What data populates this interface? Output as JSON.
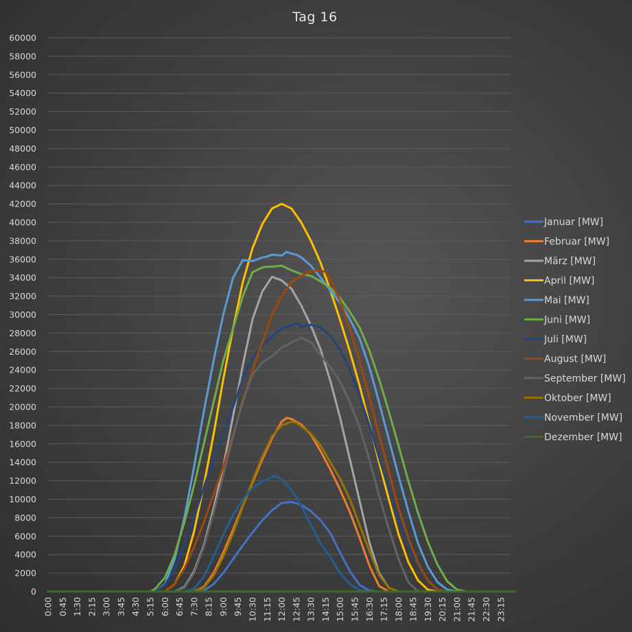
{
  "chart_data": {
    "type": "line",
    "title": "Tag 16",
    "xlabel": "",
    "ylabel": "",
    "ylim": [
      0,
      60000
    ],
    "y_ticks": [
      0,
      2000,
      4000,
      6000,
      8000,
      10000,
      12000,
      14000,
      16000,
      18000,
      20000,
      22000,
      24000,
      26000,
      28000,
      30000,
      32000,
      34000,
      36000,
      38000,
      40000,
      42000,
      44000,
      46000,
      48000,
      50000,
      52000,
      54000,
      56000,
      58000,
      60000
    ],
    "x_ticks": [
      "0:00",
      "0:45",
      "1:30",
      "2:15",
      "3:00",
      "3:45",
      "4:30",
      "5:15",
      "6:00",
      "6:45",
      "7:30",
      "8:15",
      "9:00",
      "9:45",
      "10:30",
      "11:15",
      "12:00",
      "12:45",
      "13:30",
      "14:15",
      "15:00",
      "15:45",
      "16:30",
      "17:15",
      "18:00",
      "18:45",
      "19:30",
      "20:15",
      "21:00",
      "21:45",
      "22:30",
      "23:15"
    ],
    "x_unit": "hours",
    "grid": true,
    "legend_position": "right",
    "series": [
      {
        "name": "Januar [MW]",
        "color": "#4472c4",
        "x": [
          0,
          7.5,
          8.0,
          8.5,
          9.0,
          9.5,
          10.0,
          10.5,
          11.0,
          11.5,
          12.0,
          12.5,
          13.0,
          13.5,
          14.0,
          14.5,
          15.0,
          15.5,
          16.0,
          16.5,
          17.0,
          24
        ],
        "y": [
          0,
          0,
          100,
          800,
          2000,
          3500,
          5000,
          6400,
          7700,
          8800,
          9600,
          9700,
          9400,
          8700,
          7700,
          6300,
          4200,
          2200,
          700,
          100,
          0,
          0
        ]
      },
      {
        "name": "Februar [MW]",
        "color": "#ed7d31",
        "x": [
          0,
          7.5,
          8.0,
          8.5,
          9.0,
          9.5,
          10.0,
          10.5,
          11.0,
          11.5,
          12.0,
          12.25,
          12.5,
          13.0,
          13.5,
          14.0,
          14.5,
          15.0,
          15.5,
          16.0,
          16.5,
          17.0,
          17.5,
          24
        ],
        "y": [
          0,
          0,
          500,
          2000,
          4200,
          6700,
          9300,
          11800,
          14300,
          16600,
          18400,
          18800,
          18700,
          18100,
          17000,
          15200,
          13200,
          11000,
          8600,
          5800,
          2800,
          600,
          0,
          0
        ]
      },
      {
        "name": "März [MW]",
        "color": "#a5a5a5",
        "x": [
          0,
          6.5,
          7.0,
          7.5,
          8.0,
          8.5,
          9.0,
          9.5,
          10.0,
          10.5,
          11.0,
          11.5,
          12.0,
          12.5,
          13.0,
          13.5,
          14.0,
          14.5,
          15.0,
          15.5,
          16.0,
          16.5,
          17.0,
          17.5,
          18.0,
          24
        ],
        "y": [
          0,
          0,
          500,
          2200,
          5000,
          9000,
          13500,
          19000,
          24500,
          29500,
          32500,
          34100,
          33700,
          32800,
          31000,
          28800,
          26200,
          22800,
          18800,
          14300,
          9800,
          5300,
          2000,
          400,
          0,
          0
        ]
      },
      {
        "name": "April [MW]",
        "color": "#ffc000",
        "x": [
          0,
          6.0,
          6.5,
          7.0,
          7.5,
          8.0,
          8.5,
          9.0,
          9.5,
          10.0,
          10.5,
          11.0,
          11.5,
          12.0,
          12.5,
          13.0,
          13.5,
          14.0,
          14.5,
          15.0,
          15.5,
          16.0,
          16.5,
          17.0,
          17.5,
          18.0,
          18.5,
          19.0,
          19.5,
          20.0,
          24
        ],
        "y": [
          0,
          0,
          800,
          2800,
          6500,
          11500,
          17000,
          23000,
          28500,
          33500,
          37200,
          39800,
          41500,
          42000,
          41500,
          40000,
          38000,
          35600,
          32600,
          29400,
          26000,
          22300,
          18200,
          14000,
          10000,
          6200,
          3200,
          1200,
          200,
          0,
          0
        ]
      },
      {
        "name": "Mai [MW]",
        "color": "#5b9bd5",
        "x": [
          0,
          5.5,
          6.0,
          6.5,
          7.0,
          7.5,
          8.0,
          8.5,
          9.0,
          9.5,
          10.0,
          10.5,
          11.0,
          11.25,
          11.5,
          12.0,
          12.25,
          12.5,
          12.75,
          13.0,
          13.5,
          14.0,
          14.5,
          15.0,
          15.5,
          16.0,
          16.5,
          17.0,
          17.5,
          18.0,
          18.5,
          19.0,
          19.5,
          20.0,
          20.5,
          21.0,
          24
        ],
        "y": [
          0,
          0,
          800,
          3500,
          8000,
          13500,
          19500,
          25000,
          30000,
          34000,
          35900,
          35800,
          36200,
          36300,
          36500,
          36400,
          36800,
          36600,
          36500,
          36200,
          35300,
          34000,
          32600,
          31300,
          29500,
          27400,
          24300,
          20500,
          16500,
          12500,
          8700,
          5200,
          2700,
          1000,
          200,
          0,
          0
        ]
      },
      {
        "name": "Juni [MW]",
        "color": "#70ad47",
        "x": [
          0,
          5.25,
          5.5,
          6.0,
          6.5,
          7.0,
          7.5,
          8.0,
          8.5,
          9.0,
          9.5,
          10.0,
          10.5,
          11.0,
          11.25,
          11.5,
          12.0,
          12.5,
          13.0,
          13.5,
          14.0,
          14.5,
          15.0,
          15.5,
          16.0,
          16.5,
          17.0,
          17.5,
          18.0,
          18.5,
          19.0,
          19.5,
          20.0,
          20.5,
          21.0,
          21.5,
          24
        ],
        "y": [
          0,
          0,
          300,
          1500,
          4000,
          7500,
          11500,
          16000,
          20500,
          25000,
          28500,
          32000,
          34600,
          35100,
          35200,
          35200,
          35300,
          34800,
          34400,
          34200,
          33600,
          32900,
          31800,
          30300,
          28600,
          26100,
          23000,
          19500,
          15800,
          12000,
          8500,
          5400,
          2900,
          1100,
          200,
          0,
          0
        ]
      },
      {
        "name": "Juli [MW]",
        "color": "#264478",
        "x": [
          0,
          5.5,
          6.0,
          6.5,
          7.0,
          7.5,
          8.0,
          8.5,
          9.0,
          9.5,
          10.0,
          10.5,
          11.0,
          11.5,
          12.0,
          12.5,
          12.75,
          13.0,
          13.5,
          14.0,
          14.5,
          15.0,
          15.5,
          16.0,
          16.5,
          17.0,
          17.5,
          18.0,
          18.5,
          19.0,
          19.5,
          20.0,
          20.5,
          21.0,
          24
        ],
        "y": [
          0,
          0,
          700,
          2400,
          5000,
          8000,
          11300,
          14300,
          17000,
          20000,
          23000,
          25300,
          26600,
          27600,
          28500,
          28800,
          29100,
          28700,
          28900,
          28600,
          27700,
          26200,
          24000,
          21200,
          18000,
          14500,
          11000,
          7800,
          5000,
          2800,
          1200,
          300,
          0,
          0,
          0
        ]
      },
      {
        "name": "August [MW]",
        "color": "#9e480e",
        "x": [
          0,
          6.0,
          6.5,
          7.0,
          7.5,
          8.0,
          8.5,
          9.0,
          9.5,
          10.0,
          10.5,
          11.0,
          11.5,
          12.0,
          12.5,
          13.0,
          13.5,
          14.0,
          14.25,
          14.5,
          15.0,
          15.5,
          16.0,
          16.5,
          17.0,
          17.5,
          18.0,
          18.5,
          19.0,
          19.5,
          20.0,
          20.5,
          24
        ],
        "y": [
          0,
          0,
          800,
          2500,
          4800,
          7500,
          10500,
          13500,
          17000,
          20500,
          24000,
          27000,
          30000,
          32000,
          33500,
          34200,
          34700,
          34800,
          34600,
          33800,
          31500,
          28500,
          25000,
          21000,
          17000,
          13000,
          9000,
          5800,
          3100,
          1200,
          200,
          0,
          0
        ]
      },
      {
        "name": "September [MW]",
        "color": "#636363",
        "x": [
          0,
          6.5,
          7.0,
          7.5,
          8.0,
          8.5,
          9.0,
          9.5,
          10.0,
          10.5,
          11.0,
          11.5,
          12.0,
          12.5,
          13.0,
          13.5,
          14.0,
          14.5,
          15.0,
          15.5,
          16.0,
          16.5,
          17.0,
          17.5,
          18.0,
          18.5,
          19.0,
          24
        ],
        "y": [
          0,
          0,
          400,
          2000,
          4800,
          8500,
          12600,
          16800,
          20700,
          23500,
          24800,
          25500,
          26400,
          27000,
          27500,
          27000,
          25600,
          24300,
          22700,
          20500,
          17800,
          14300,
          10400,
          6800,
          3500,
          1000,
          0,
          0
        ]
      },
      {
        "name": "Oktober [MW]",
        "color": "#997300",
        "x": [
          0,
          7.5,
          8.0,
          8.5,
          9.0,
          9.5,
          10.0,
          10.5,
          11.0,
          11.5,
          12.0,
          12.5,
          12.75,
          13.0,
          13.5,
          14.0,
          14.5,
          15.0,
          15.5,
          16.0,
          16.5,
          17.0,
          17.5,
          18.0,
          24
        ],
        "y": [
          0,
          0,
          400,
          1700,
          3800,
          6300,
          9200,
          12000,
          14600,
          16800,
          18000,
          18400,
          18300,
          17900,
          17100,
          15800,
          14000,
          12200,
          10000,
          7200,
          4400,
          1800,
          400,
          0,
          0
        ]
      },
      {
        "name": "November [MW]",
        "color": "#255e91",
        "x": [
          0,
          7.0,
          7.5,
          8.0,
          8.5,
          9.0,
          9.5,
          10.0,
          10.5,
          11.0,
          11.5,
          11.75,
          12.0,
          12.5,
          13.0,
          13.5,
          14.0,
          14.5,
          15.0,
          15.5,
          16.0,
          16.5,
          24
        ],
        "y": [
          0,
          0,
          300,
          1600,
          3800,
          6200,
          8300,
          10000,
          11200,
          11900,
          12400,
          12500,
          12200,
          11000,
          9300,
          7200,
          5200,
          3700,
          2000,
          800,
          150,
          0,
          0
        ]
      },
      {
        "name": "Dezember [MW]",
        "color": "#43682b",
        "x": [
          0,
          24
        ],
        "y": [
          0,
          0
        ]
      }
    ]
  }
}
